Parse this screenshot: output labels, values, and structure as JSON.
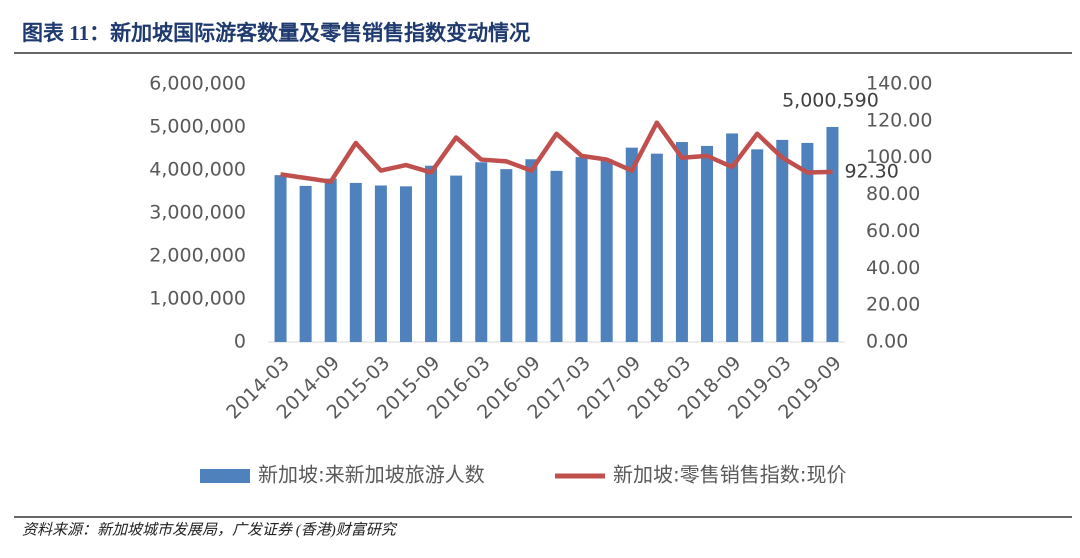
{
  "chart_data": {
    "type": "bar_line",
    "title": "图表 11：新加坡国际游客数量及零售销售指数变动情况",
    "source": "资料来源：新加坡城市发展局，广发证券 (香港)财富研究",
    "categories": [
      "2014-03",
      null,
      "2014-09",
      null,
      "2015-03",
      null,
      "2015-09",
      null,
      "2016-03",
      null,
      "2016-09",
      null,
      "2017-03",
      null,
      "2017-09",
      null,
      "2018-03",
      null,
      "2018-09",
      null,
      "2019-03",
      null,
      "2019-09"
    ],
    "series": [
      {
        "name": "新加坡:来新加坡旅游人数",
        "type": "bar",
        "color": "#4f81bd",
        "values": [
          3880000,
          3630000,
          3800000,
          3700000,
          3640000,
          3620000,
          4100000,
          3870000,
          4180000,
          4020000,
          4250000,
          3980000,
          4300000,
          4250000,
          4520000,
          4380000,
          4650000,
          4560000,
          4850000,
          4480000,
          4700000,
          4630000,
          5000590
        ],
        "value_labels": [
          null,
          null,
          null,
          null,
          null,
          null,
          null,
          null,
          null,
          null,
          null,
          null,
          null,
          null,
          null,
          null,
          null,
          null,
          null,
          null,
          null,
          null,
          "5,000,590"
        ]
      },
      {
        "name": "新加坡:零售销售指数:现价",
        "type": "line",
        "axis": "y2",
        "color": "#c0504d",
        "values": [
          91,
          89,
          87,
          108,
          93,
          96,
          92,
          111,
          99,
          98,
          93,
          113,
          101,
          99,
          93,
          119,
          100,
          101,
          95,
          113,
          100,
          92,
          92.3
        ],
        "value_labels": [
          null,
          null,
          null,
          null,
          null,
          null,
          null,
          null,
          null,
          null,
          null,
          null,
          null,
          null,
          null,
          null,
          null,
          null,
          null,
          null,
          null,
          null,
          "92.30"
        ]
      }
    ],
    "ylim": [
      0,
      6000000
    ],
    "yticks": [
      0,
      {
        "value": 1000000,
        "label": "1,000,000"
      },
      {
        "value": 2000000,
        "label": "2,000,000"
      },
      {
        "value": 3000000,
        "label": "3,000,000"
      },
      {
        "value": 4000000,
        "label": "4,000,000"
      },
      {
        "value": 5000000,
        "label": "5,000,000"
      },
      {
        "value": 6000000,
        "label": "6,000,000"
      }
    ],
    "y2lim": [
      0,
      140
    ],
    "y2ticks": [
      {
        "value": 0,
        "label": "0.00"
      },
      {
        "value": 20,
        "label": "20.00"
      },
      {
        "value": 40,
        "label": "40.00"
      },
      {
        "value": 60,
        "label": "60.00"
      },
      {
        "value": 80,
        "label": "80.00"
      },
      {
        "value": 100,
        "label": "100.00"
      },
      {
        "value": 120,
        "label": "120.00"
      },
      {
        "value": 140,
        "label": "140.00"
      }
    ],
    "grid": false,
    "legend": "bottom"
  }
}
